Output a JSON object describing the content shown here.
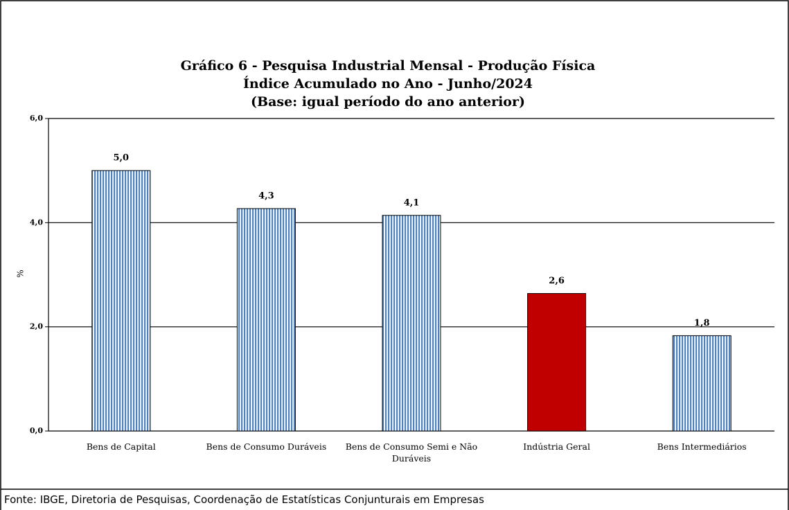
{
  "chart_data": {
    "type": "bar",
    "title": [
      "Gráfico 6 - Pesquisa Industrial Mensal - Produção Física",
      "Índice Acumulado no Ano - Junho/2024",
      "(Base: igual período do ano anterior)"
    ],
    "y_label": "%",
    "categories": [
      "Bens de Capital",
      "Bens de Consumo Duráveis",
      "Bens de Consumo Semi e Não Duráveis",
      "Indústria Geral",
      "Bens Intermediários"
    ],
    "values": [
      5.0,
      4.27,
      4.14,
      2.64,
      1.83
    ],
    "value_labels": [
      "5,0",
      "4,3",
      "4,1",
      "2,6",
      "1,8"
    ],
    "colors": [
      "#4f81bd",
      "#4f81bd",
      "#4f81bd",
      "#c00000",
      "#4f81bd"
    ],
    "striped": [
      true,
      true,
      true,
      false,
      true
    ],
    "ylim": [
      0,
      6
    ],
    "yticks": [
      {
        "value": 0,
        "label": "0,0"
      },
      {
        "value": 2,
        "label": "2,0"
      },
      {
        "value": 4,
        "label": "4,0"
      },
      {
        "value": 6,
        "label": "6,0"
      }
    ],
    "grid": true,
    "source": "Fonte: IBGE, Diretoria de Pesquisas, Coordenação de Estatísticas Conjunturais em Empresas"
  }
}
